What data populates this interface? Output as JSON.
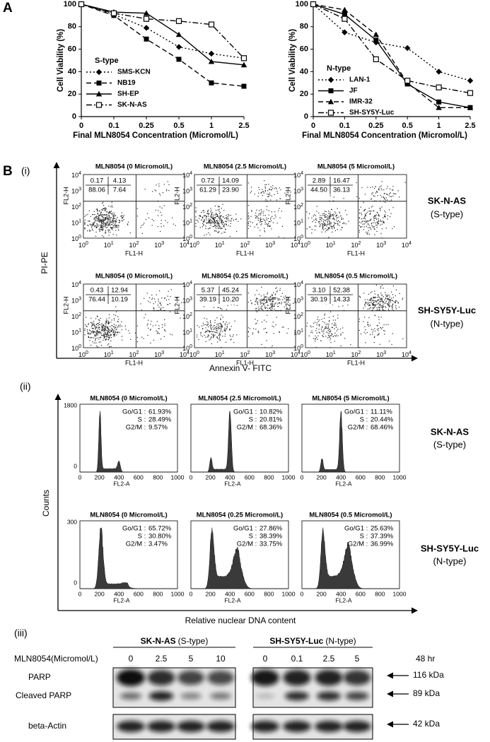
{
  "panels": {
    "a": "A",
    "b": "B",
    "i": "(i)",
    "ii": "(ii)",
    "iii": "(iii)"
  },
  "chart_data": [
    {
      "type": "line",
      "ylabel": "Cell Viability (%)",
      "xlabel": "Final MLN8054 Concentration (Micromol/L)",
      "categories": [
        "0",
        "0.1",
        "0.25",
        "0.5",
        "1",
        "2.5"
      ],
      "ylim": [
        0,
        100
      ],
      "yticks": [
        0,
        20,
        40,
        60,
        80,
        100
      ],
      "legend_title": "S-type",
      "series": [
        {
          "name": "SMS-KCN",
          "color": "#000000",
          "marker": "diamond",
          "dash": "dotted",
          "values": [
            100,
            91,
            79,
            62,
            56,
            52
          ]
        },
        {
          "name": "NB19",
          "color": "#000000",
          "marker": "square",
          "dash": "dashed",
          "values": [
            100,
            90,
            69,
            51,
            30,
            27
          ]
        },
        {
          "name": "SH-EP",
          "color": "#000000",
          "marker": "triangle",
          "dash": "solid",
          "values": [
            100,
            93,
            92,
            73,
            49,
            46
          ]
        },
        {
          "name": "SK-N-AS",
          "color": "#000000",
          "marker": "open-square",
          "dash": "dashdot",
          "values": [
            100,
            92,
            87,
            85,
            82,
            52
          ]
        }
      ]
    },
    {
      "type": "line",
      "ylabel": "Cell Viability (%)",
      "xlabel": "Final MLN8054 Concentration (Micromol/L)",
      "categories": [
        "0",
        "0.1",
        "0.25",
        "0.5",
        "1",
        "2.5"
      ],
      "ylim": [
        0,
        100
      ],
      "yticks": [
        0,
        20,
        40,
        60,
        80,
        100
      ],
      "legend_title": "N-type",
      "series": [
        {
          "name": "LAN-1",
          "color": "#000000",
          "marker": "diamond",
          "dash": "dotted",
          "values": [
            100,
            75,
            66,
            61,
            40,
            32
          ]
        },
        {
          "name": "JF",
          "color": "#000000",
          "marker": "square",
          "dash": "solid",
          "values": [
            100,
            91,
            68,
            29,
            13,
            8
          ]
        },
        {
          "name": "IMR-32",
          "color": "#000000",
          "marker": "triangle",
          "dash": "dashed",
          "values": [
            100,
            95,
            73,
            30,
            8,
            8
          ]
        },
        {
          "name": "SH-SY5Y-Luc",
          "color": "#000000",
          "marker": "open-square",
          "dash": "dashdot",
          "values": [
            100,
            87,
            51,
            32,
            26,
            21
          ]
        }
      ]
    }
  ],
  "flow": {
    "y_axis_label": "PI-PE",
    "x_axis_label": "Annexin V- FITC",
    "tick_base": "10",
    "tick_exponents": [
      "0",
      "1",
      "2",
      "3",
      "4"
    ],
    "plot_x_label": "FL1-H",
    "plot_y_label": "FL2-H",
    "rows": [
      {
        "cell_line": "SK-N-AS",
        "type": "(S-type)",
        "plots": [
          {
            "title": "MLN8054 (0 Micromol/L)",
            "quadrants": [
              "0.17",
              "4.13",
              "88.06",
              "7.64"
            ]
          },
          {
            "title": "MLN8054 (2.5 Micromol/L)",
            "quadrants": [
              "0.72",
              "14.09",
              "61.29",
              "23.90"
            ]
          },
          {
            "title": "MLN8054 (5 Micromol/L)",
            "quadrants": [
              "2.89",
              "16.47",
              "44.50",
              "36.13"
            ]
          }
        ]
      },
      {
        "cell_line": "SH-SY5Y-Luc",
        "type": "(N-type)",
        "plots": [
          {
            "title": "MLN8054 (0 Micromol/L)",
            "quadrants": [
              "0.43",
              "12.94",
              "76.44",
              "10.19"
            ]
          },
          {
            "title": "MLN8054 (0.25 Micromol/L)",
            "quadrants": [
              "5.37",
              "45.24",
              "39.19",
              "10.20"
            ]
          },
          {
            "title": "MLN8054 (0.5 Micromol/L)",
            "quadrants": [
              "3.10",
              "52.38",
              "30.19",
              "14.33"
            ]
          }
        ]
      }
    ]
  },
  "cell_cycle": {
    "y_axis_label": "Counts",
    "x_axis_label": "Relative nuclear DNA content",
    "plot_x_label": "FL2-A",
    "xticks": [
      "0",
      "200",
      "400",
      "600",
      "800",
      "1000"
    ],
    "rows": [
      {
        "cell_line": "SK-N-AS",
        "type": "(S-type)",
        "yticks": [
          "0",
          "1800"
        ],
        "plots": [
          {
            "title": "MLN8054 (0 Micromol/L)",
            "stats": [
              {
                "phase": "Go/G1",
                "value": "61.93%"
              },
              {
                "phase": "S",
                "value": "28.49%"
              },
              {
                "phase": "G2/M",
                "value": "9.57%"
              }
            ]
          },
          {
            "title": "MLN8054 (2.5 Micromol/L)",
            "stats": [
              {
                "phase": "Go/G1",
                "value": "10.82%"
              },
              {
                "phase": "S",
                "value": "20.81%"
              },
              {
                "phase": "G2/M",
                "value": "68.36%"
              }
            ]
          },
          {
            "title": "MLN8054 (5 Micromol/L)",
            "stats": [
              {
                "phase": "Go/G1",
                "value": "11.11%"
              },
              {
                "phase": "S",
                "value": "20.44%"
              },
              {
                "phase": "G2/M",
                "value": "68.46%"
              }
            ]
          }
        ]
      },
      {
        "cell_line": "SH-SY5Y-Luc",
        "type": "(N-type)",
        "yticks": [
          "0",
          "300"
        ],
        "plots": [
          {
            "title": "MLN8054 (0 Micromol/L)",
            "stats": [
              {
                "phase": "Go/G1",
                "value": "65.72%"
              },
              {
                "phase": "S",
                "value": "30.80%"
              },
              {
                "phase": "G2/M",
                "value": "3.47%"
              }
            ]
          },
          {
            "title": "MLN8054 (0.25 Micromol/L)",
            "stats": [
              {
                "phase": "Go/G1",
                "value": "27.86%"
              },
              {
                "phase": "S",
                "value": "38.39%"
              },
              {
                "phase": "G2/M",
                "value": "33.75%"
              }
            ]
          },
          {
            "title": "MLN8054 (0.5 Micromol/L)",
            "stats": [
              {
                "phase": "Go/G1",
                "value": "25.63%"
              },
              {
                "phase": "S",
                "value": "37.39%"
              },
              {
                "phase": "G2/M",
                "value": "36.99%"
              }
            ]
          }
        ]
      }
    ]
  },
  "western": {
    "treatment_label": "MLN8054(Micromol/L)",
    "time": "48 hr",
    "groups": [
      {
        "name": "SK-N-AS",
        "type": "(S-type)",
        "lanes": [
          "0",
          "2.5",
          "5",
          "10"
        ]
      },
      {
        "name": "SH-SY5Y-Luc",
        "type": "(N-type)",
        "lanes": [
          "0",
          "0.1",
          "2.5",
          "5"
        ]
      }
    ],
    "bands": [
      "PARP",
      "Cleaved PARP",
      "beta-Actin"
    ],
    "markers": [
      "116 kDa",
      "89 kDa",
      "42 kDa"
    ]
  }
}
